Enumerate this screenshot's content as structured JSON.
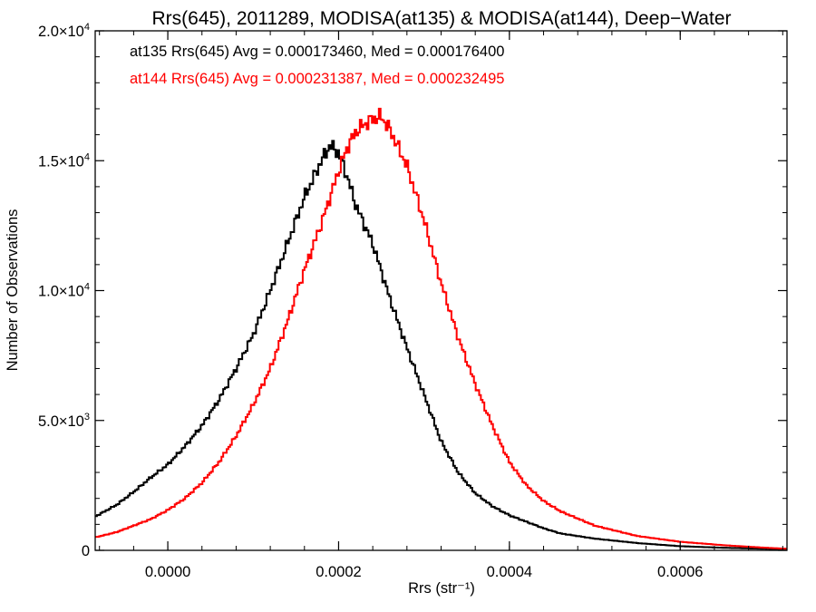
{
  "chart_data": {
    "type": "line",
    "title": "Rrs(645), 2011289, MODISA(at135) & MODISA(at144), Deep−Water",
    "xlabel": "Rrs (str⁻¹)",
    "ylabel": "Number of Observations",
    "xlim": [
      -8.5e-05,
      0.000725
    ],
    "ylim": [
      0,
      20000
    ],
    "grid": false,
    "legend_placement": "top-left",
    "x_ticks": [
      {
        "value": 0.0,
        "label": "0.0000"
      },
      {
        "value": 0.0002,
        "label": "0.0002"
      },
      {
        "value": 0.0004,
        "label": "0.0004"
      },
      {
        "value": 0.0006,
        "label": "0.0006"
      }
    ],
    "y_ticks": [
      {
        "value": 0,
        "label": "0",
        "mant": "0",
        "exp": ""
      },
      {
        "value": 5000,
        "label": "5.0×10³",
        "mant": "5.0×10",
        "exp": "3"
      },
      {
        "value": 10000,
        "label": "1.0×10⁴",
        "mant": "1.0×10",
        "exp": "4"
      },
      {
        "value": 15000,
        "label": "1.5×10⁴",
        "mant": "1.5×10",
        "exp": "4"
      },
      {
        "value": 20000,
        "label": "2.0×10⁴",
        "mant": "2.0×10",
        "exp": "4"
      }
    ],
    "annotations": [
      {
        "text": "at135 Rrs(645) Avg = 0.000173460, Med = 0.000176400",
        "color": "#000000"
      },
      {
        "text": "at144 Rrs(645) Avg = 0.000231387, Med = 0.000232495",
        "color": "#ff0000"
      }
    ],
    "series": [
      {
        "color": "#000000",
        "x": [
          -8.5e-05,
          -6e-05,
          -4e-05,
          -2e-05,
          0.0,
          2e-05,
          4e-05,
          6e-05,
          8e-05,
          0.0001,
          0.00012,
          0.00014,
          0.00016,
          0.00018,
          0.00019,
          0.0002,
          0.00021,
          0.00022,
          0.00024,
          0.00026,
          0.00028,
          0.0003,
          0.00032,
          0.00034,
          0.00036,
          0.00038,
          0.0004,
          0.00042,
          0.00044,
          0.00046,
          0.0005,
          0.00055,
          0.0006,
          0.00065,
          0.0007,
          0.000725
        ],
        "y": [
          1300,
          1750,
          2250,
          2800,
          3300,
          4000,
          4800,
          5800,
          7000,
          8300,
          10000,
          11800,
          13600,
          15000,
          15600,
          15300,
          14400,
          13300,
          11800,
          9700,
          7800,
          6000,
          4200,
          3000,
          2200,
          1700,
          1350,
          1100,
          850,
          650,
          450,
          280,
          160,
          100,
          60,
          40
        ]
      },
      {
        "color": "#ff0000",
        "x": [
          -8.5e-05,
          -6e-05,
          -4e-05,
          -2e-05,
          0.0,
          2e-05,
          4e-05,
          6e-05,
          8e-05,
          0.0001,
          0.00012,
          0.00014,
          0.00016,
          0.00018,
          0.0002,
          0.00021,
          0.00022,
          0.00023,
          0.00024,
          0.00025,
          0.00026,
          0.00027,
          0.00028,
          0.0003,
          0.00032,
          0.00034,
          0.00036,
          0.00038,
          0.0004,
          0.00042,
          0.00044,
          0.00046,
          0.0005,
          0.00055,
          0.0006,
          0.00065,
          0.0007,
          0.000725
        ],
        "y": [
          500,
          700,
          950,
          1200,
          1550,
          2000,
          2600,
          3400,
          4400,
          5600,
          7000,
          8800,
          10800,
          12600,
          14600,
          15500,
          16100,
          16400,
          16600,
          16700,
          16200,
          15500,
          14800,
          12700,
          10300,
          8200,
          6400,
          4800,
          3400,
          2500,
          1900,
          1500,
          950,
          550,
          330,
          200,
          100,
          60
        ]
      }
    ]
  }
}
